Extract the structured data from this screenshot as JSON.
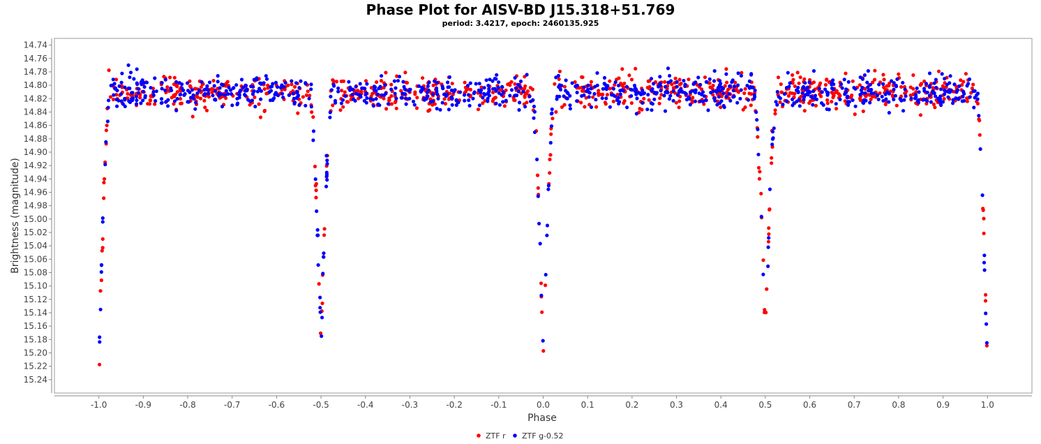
{
  "chart_data": {
    "type": "scatter",
    "title": "Phase Plot for AISV-BD J15.318+51.769",
    "subtitle": "period: 3.4217, epoch: 2460135.925",
    "xlabel": "Phase",
    "ylabel": "Brightness (magnitude)",
    "xlim": [
      -1.1,
      1.1
    ],
    "ylim": [
      15.26,
      14.73
    ],
    "y_inverted": true,
    "x_ticks": [
      "-1.0",
      "-0.9",
      "-0.8",
      "-0.7",
      "-0.6",
      "-0.5",
      "-0.4",
      "-0.3",
      "-0.2",
      "-0.1",
      "0.0",
      "0.1",
      "0.2",
      "0.3",
      "0.4",
      "0.5",
      "0.6",
      "0.7",
      "0.8",
      "0.9",
      "1.0"
    ],
    "y_ticks": [
      "14.74",
      "14.76",
      "14.78",
      "14.80",
      "14.82",
      "14.84",
      "14.86",
      "14.88",
      "14.90",
      "14.92",
      "14.94",
      "14.96",
      "14.98",
      "15.00",
      "15.02",
      "15.04",
      "15.06",
      "15.08",
      "15.10",
      "15.12",
      "15.14",
      "15.16",
      "15.18",
      "15.20",
      "15.22",
      "15.24"
    ],
    "grid": false,
    "legend_position": "bottom-center",
    "light_curve_model": {
      "baseline_magnitude": 14.81,
      "primary_eclipse": {
        "phase": 0.0,
        "depth_magnitude": 15.22,
        "half_width_phase": 0.025
      },
      "secondary_eclipse": {
        "phase": 0.5,
        "depth_magnitude": 15.18,
        "half_width_phase": 0.025
      },
      "scatter_magnitude": 0.02,
      "points_per_series": 900
    },
    "series": [
      {
        "name": "ZTF r",
        "color": "#ff0000"
      },
      {
        "name": "ZTF g-0.52",
        "color": "#0000ff"
      }
    ]
  }
}
